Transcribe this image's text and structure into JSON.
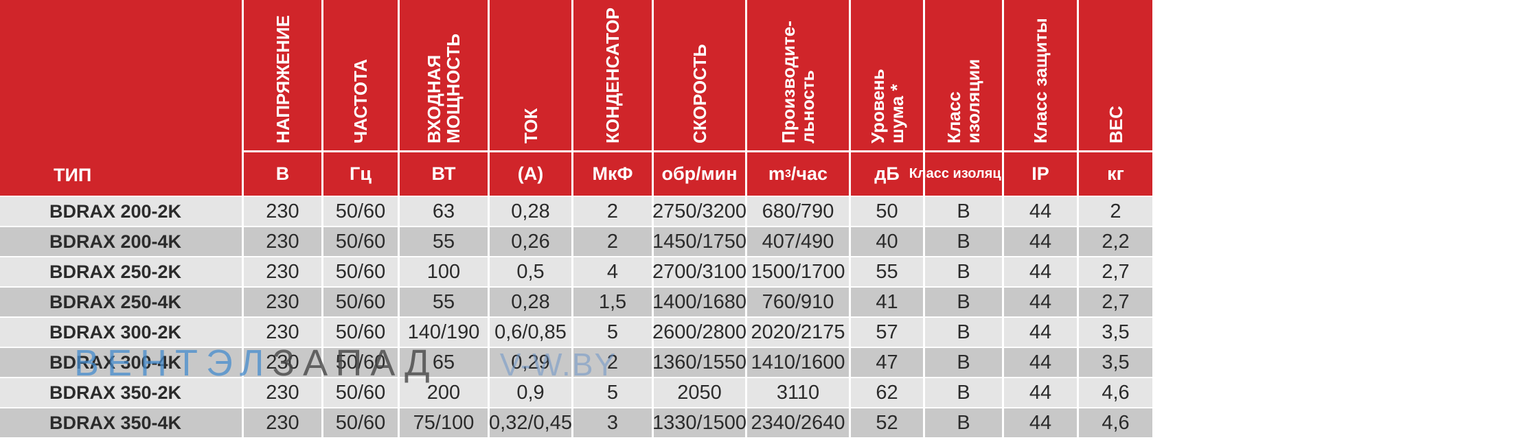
{
  "header": {
    "type_label": "ТИП",
    "columns": [
      {
        "title": "НАПРЯЖЕНИЕ",
        "unit": "В"
      },
      {
        "title": "ЧАСТОТА",
        "unit": "Гц"
      },
      {
        "title": "ВХОДНАЯ\nМОЩНОСТЬ",
        "unit": "ВТ"
      },
      {
        "title": "ТОК",
        "unit": "(А)"
      },
      {
        "title": "КОНДЕНСАТОР",
        "unit": "МкФ"
      },
      {
        "title": "СКОРОСТЬ",
        "unit": "обр/мин"
      },
      {
        "title": "Производите-\nльность",
        "unit_main": "m",
        "unit_sup": "3",
        "unit_tail": "/час"
      },
      {
        "title": "Уровень\nшума *",
        "unit": "дБ"
      },
      {
        "title": "Класс\nизоляции",
        "unit": "Класс изоляции"
      },
      {
        "title": "Класс защиты",
        "unit": "IP"
      },
      {
        "title": "ВЕС",
        "unit": "кг"
      }
    ]
  },
  "rows": [
    [
      "BDRAX 200-2K",
      "230",
      "50/60",
      "63",
      "0,28",
      "2",
      "2750/3200",
      "680/790",
      "50",
      "B",
      "44",
      "2"
    ],
    [
      "BDRAX 200-4K",
      "230",
      "50/60",
      "55",
      "0,26",
      "2",
      "1450/1750",
      "407/490",
      "40",
      "B",
      "44",
      "2,2"
    ],
    [
      "BDRAX 250-2K",
      "230",
      "50/60",
      "100",
      "0,5",
      "4",
      "2700/3100",
      "1500/1700",
      "55",
      "B",
      "44",
      "2,7"
    ],
    [
      "BDRAX 250-4K",
      "230",
      "50/60",
      "55",
      "0,28",
      "1,5",
      "1400/1680",
      "760/910",
      "41",
      "B",
      "44",
      "2,7"
    ],
    [
      "BDRAX 300-2K",
      "230",
      "50/60",
      "140/190",
      "0,6/0,85",
      "5",
      "2600/2800",
      "2020/2175",
      "57",
      "B",
      "44",
      "3,5"
    ],
    [
      "BDRAX 300-4K",
      "230",
      "50/60",
      "65",
      "0,29",
      "2",
      "1360/1550",
      "1410/1600",
      "47",
      "B",
      "44",
      "3,5"
    ],
    [
      "BDRAX 350-2K",
      "230",
      "50/60",
      "200",
      "0,9",
      "5",
      "2050",
      "3110",
      "62",
      "B",
      "44",
      "4,6"
    ],
    [
      "BDRAX 350-4K",
      "230",
      "50/60",
      "75/100",
      "0,32/0,45",
      "3",
      "1330/1500",
      "2340/2640",
      "52",
      "B",
      "44",
      "4,6"
    ]
  ],
  "watermark": {
    "part1": "ВЕНТЭЛ",
    "part2": "ЗАПАД",
    "part3": "V-W.BY"
  },
  "colors": {
    "header_red": "#d0252a",
    "row_light": "#e5e5e5",
    "row_dark": "#c8c8c8"
  }
}
